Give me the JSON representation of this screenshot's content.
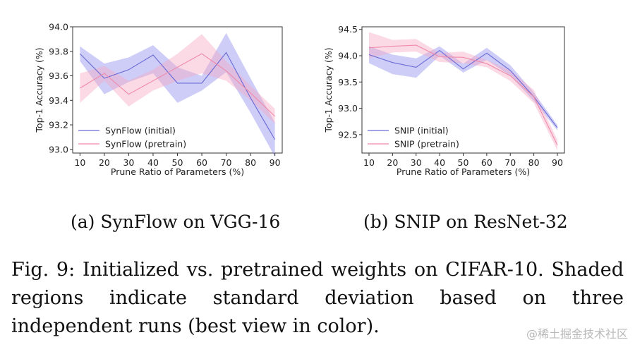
{
  "chart_data": [
    {
      "type": "line",
      "id": "a",
      "title": "",
      "xlabel": "Prune Ratio of Parameters (%)",
      "ylabel": "Top-1 Accuracy (%)",
      "x": [
        10,
        20,
        30,
        40,
        50,
        60,
        70,
        80,
        90
      ],
      "xlim": [
        7,
        93
      ],
      "ylim": [
        92.97,
        94.0
      ],
      "yticks": [
        93.0,
        93.2,
        93.4,
        93.6,
        93.8,
        94.0
      ],
      "ytick_labels": [
        "93.0",
        "93.2",
        "93.4",
        "93.6",
        "93.8",
        "94.0"
      ],
      "legend_position": "lower-left",
      "series": [
        {
          "name": "SynFlow (initial)",
          "color": "#6b6bd6",
          "fill": "#8888ee",
          "values": [
            93.78,
            93.58,
            93.65,
            93.77,
            93.54,
            93.54,
            93.79,
            93.42,
            93.08
          ],
          "upper": [
            93.84,
            93.7,
            93.75,
            93.85,
            93.67,
            93.6,
            93.95,
            93.58,
            93.22
          ],
          "lower": [
            93.72,
            93.45,
            93.55,
            93.62,
            93.38,
            93.48,
            93.63,
            93.3,
            92.94
          ]
        },
        {
          "name": "SynFlow (pretrain)",
          "color": "#f08aaa",
          "fill": "#f6a6c2",
          "values": [
            93.5,
            93.62,
            93.45,
            93.56,
            93.67,
            93.78,
            93.64,
            93.46,
            93.27
          ],
          "upper": [
            93.62,
            93.68,
            93.56,
            93.65,
            93.78,
            93.94,
            93.72,
            93.52,
            93.33
          ],
          "lower": [
            93.38,
            93.56,
            93.35,
            93.48,
            93.56,
            93.62,
            93.56,
            93.4,
            93.21
          ]
        }
      ]
    },
    {
      "type": "line",
      "id": "b",
      "title": "",
      "xlabel": "Prune Ratio of Parameters (%)",
      "ylabel": "Top-1 Accuracy (%)",
      "x": [
        10,
        20,
        30,
        40,
        50,
        60,
        70,
        80,
        90
      ],
      "xlim": [
        7,
        93
      ],
      "ylim": [
        92.15,
        94.55
      ],
      "yticks": [
        92.5,
        93.0,
        93.5,
        94.0,
        94.5
      ],
      "ytick_labels": [
        "92.5",
        "93.0",
        "93.5",
        "94.0",
        "94.5"
      ],
      "legend_position": "lower-left",
      "series": [
        {
          "name": "SNIP (initial)",
          "color": "#6b6bd6",
          "fill": "#8888ee",
          "values": [
            94.02,
            93.87,
            93.78,
            94.1,
            93.75,
            94.05,
            93.72,
            93.22,
            92.63
          ],
          "upper": [
            94.18,
            94.02,
            93.95,
            94.18,
            93.85,
            94.15,
            93.82,
            93.3,
            92.68
          ],
          "lower": [
            93.86,
            93.65,
            93.58,
            94.0,
            93.68,
            93.92,
            93.62,
            93.14,
            92.58
          ]
        },
        {
          "name": "SNIP (pretrain)",
          "color": "#f08aaa",
          "fill": "#f6a6c2",
          "values": [
            94.15,
            94.18,
            94.2,
            93.98,
            93.97,
            93.85,
            93.62,
            93.22,
            92.3
          ],
          "upper": [
            94.45,
            94.3,
            94.32,
            94.05,
            94.08,
            93.92,
            93.72,
            93.35,
            92.4
          ],
          "lower": [
            93.95,
            94.06,
            94.08,
            93.88,
            93.86,
            93.78,
            93.52,
            93.1,
            92.2
          ]
        }
      ]
    }
  ],
  "subcaptions": {
    "a": "(a) SynFlow on VGG-16",
    "b": "(b) SNIP on ResNet-32"
  },
  "caption": "Fig. 9: Initialized vs. pretrained weights on CIFAR-10. Shaded regions indicate standard deviation based on three independent runs (best view in color).",
  "watermark": "@稀土掘金技术社区"
}
